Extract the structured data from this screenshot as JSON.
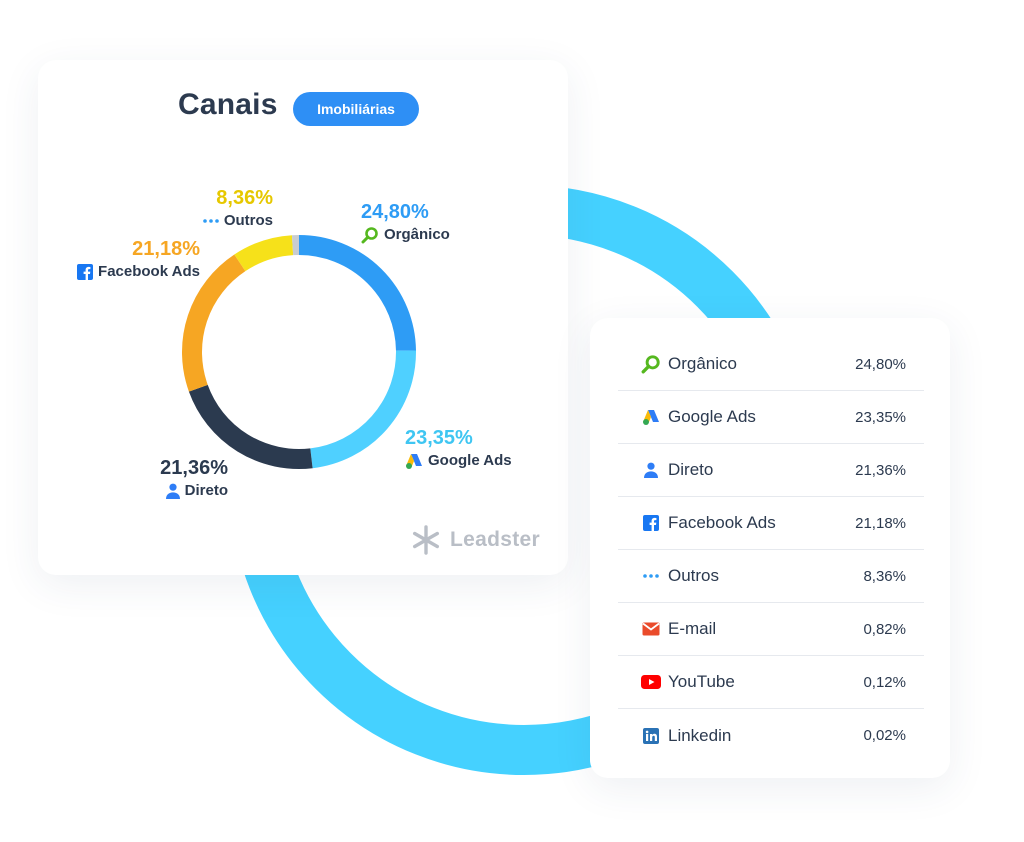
{
  "header": {
    "title": "Canais",
    "badge": "Imobiliárias"
  },
  "colors": {
    "organico": "#2e9cf5",
    "google_ads": "#4fd0ff",
    "direto": "#2b3a4f",
    "facebook_ads": "#f6a623",
    "outros": "#f6e11a",
    "rest": "#c8ccd1",
    "arc": "#45d1ff",
    "badge": "#2e8ff5"
  },
  "chart_data": {
    "type": "pie",
    "variant": "donut",
    "title": "Canais",
    "slices": [
      {
        "key": "organico",
        "label": "Orgânico",
        "value": 24.8,
        "value_label": "24,80%",
        "icon": "magnifier-icon"
      },
      {
        "key": "google_ads",
        "label": "Google Ads",
        "value": 23.35,
        "value_label": "23,35%",
        "icon": "google-ads-icon"
      },
      {
        "key": "direto",
        "label": "Direto",
        "value": 21.36,
        "value_label": "21,36%",
        "icon": "user-icon"
      },
      {
        "key": "facebook_ads",
        "label": "Facebook Ads",
        "value": 21.18,
        "value_label": "21,18%",
        "icon": "facebook-icon"
      },
      {
        "key": "outros",
        "label": "Outros",
        "value": 8.36,
        "value_label": "8,36%",
        "icon": "dots-icon"
      },
      {
        "key": "rest",
        "label": "",
        "value": 0.96,
        "value_label": "",
        "icon": ""
      }
    ]
  },
  "brand": {
    "name": "Leadster"
  },
  "table": {
    "rows": [
      {
        "name": "Orgânico",
        "value": "24,80%",
        "icon": "magnifier-icon"
      },
      {
        "name": "Google Ads",
        "value": "23,35%",
        "icon": "google-ads-icon"
      },
      {
        "name": "Direto",
        "value": "21,36%",
        "icon": "user-icon"
      },
      {
        "name": "Facebook Ads",
        "value": "21,18%",
        "icon": "facebook-icon"
      },
      {
        "name": "Outros",
        "value": "8,36%",
        "icon": "dots-icon"
      },
      {
        "name": "E-mail",
        "value": "0,82%",
        "icon": "email-icon"
      },
      {
        "name": "YouTube",
        "value": "0,12%",
        "icon": "youtube-icon"
      },
      {
        "name": "Linkedin",
        "value": "0,02%",
        "icon": "linkedin-icon"
      }
    ]
  }
}
